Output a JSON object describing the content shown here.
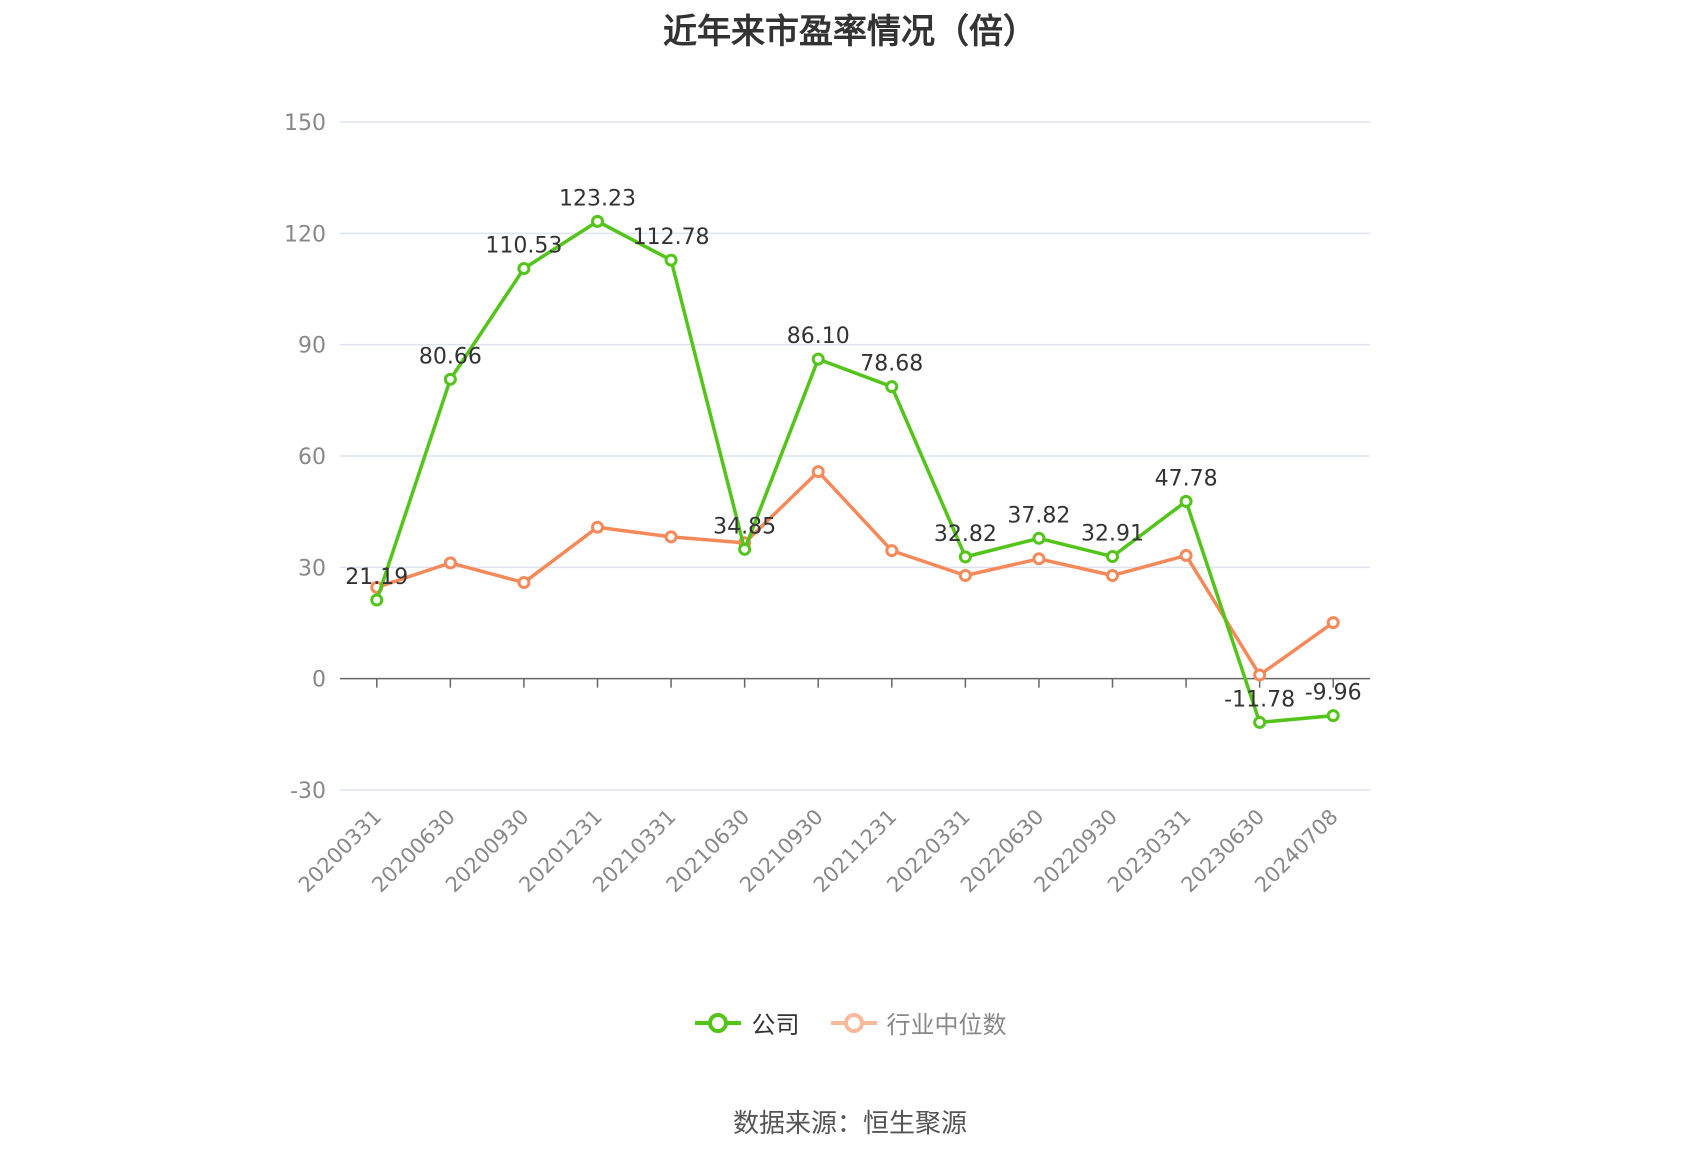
{
  "chart_data": {
    "type": "line",
    "title": "近年来市盈率情况（倍）",
    "categories": [
      "20200331",
      "20200630",
      "20200930",
      "20201231",
      "20210331",
      "20210630",
      "20210930",
      "20211231",
      "20220331",
      "20220630",
      "20220930",
      "20230331",
      "20230630",
      "20240708"
    ],
    "yticks": [
      150,
      120,
      90,
      60,
      30,
      0,
      -30
    ],
    "ylim": [
      -30,
      150
    ],
    "grid": true,
    "legend_position": "bottom-center",
    "series": [
      {
        "name": "公司",
        "color": "#52c41a",
        "values": [
          21.19,
          80.66,
          110.53,
          123.23,
          112.78,
          34.85,
          86.1,
          78.68,
          32.82,
          37.82,
          32.91,
          47.78,
          -11.78,
          -9.96
        ],
        "labels": [
          "21.19",
          "80.66",
          "110.53",
          "123.23",
          "112.78",
          "34.85",
          "86.10",
          "78.68",
          "32.82",
          "37.82",
          "32.91",
          "47.78",
          "-11.78",
          "-9.96"
        ]
      },
      {
        "name": "行业中位数",
        "color": "#f5895a",
        "values": [
          24.6,
          31.2,
          25.9,
          40.8,
          38.2,
          36.6,
          55.8,
          34.5,
          27.8,
          32.3,
          27.8,
          33.2,
          1.0,
          15.1
        ]
      }
    ]
  },
  "source": "数据来源：恒生聚源"
}
